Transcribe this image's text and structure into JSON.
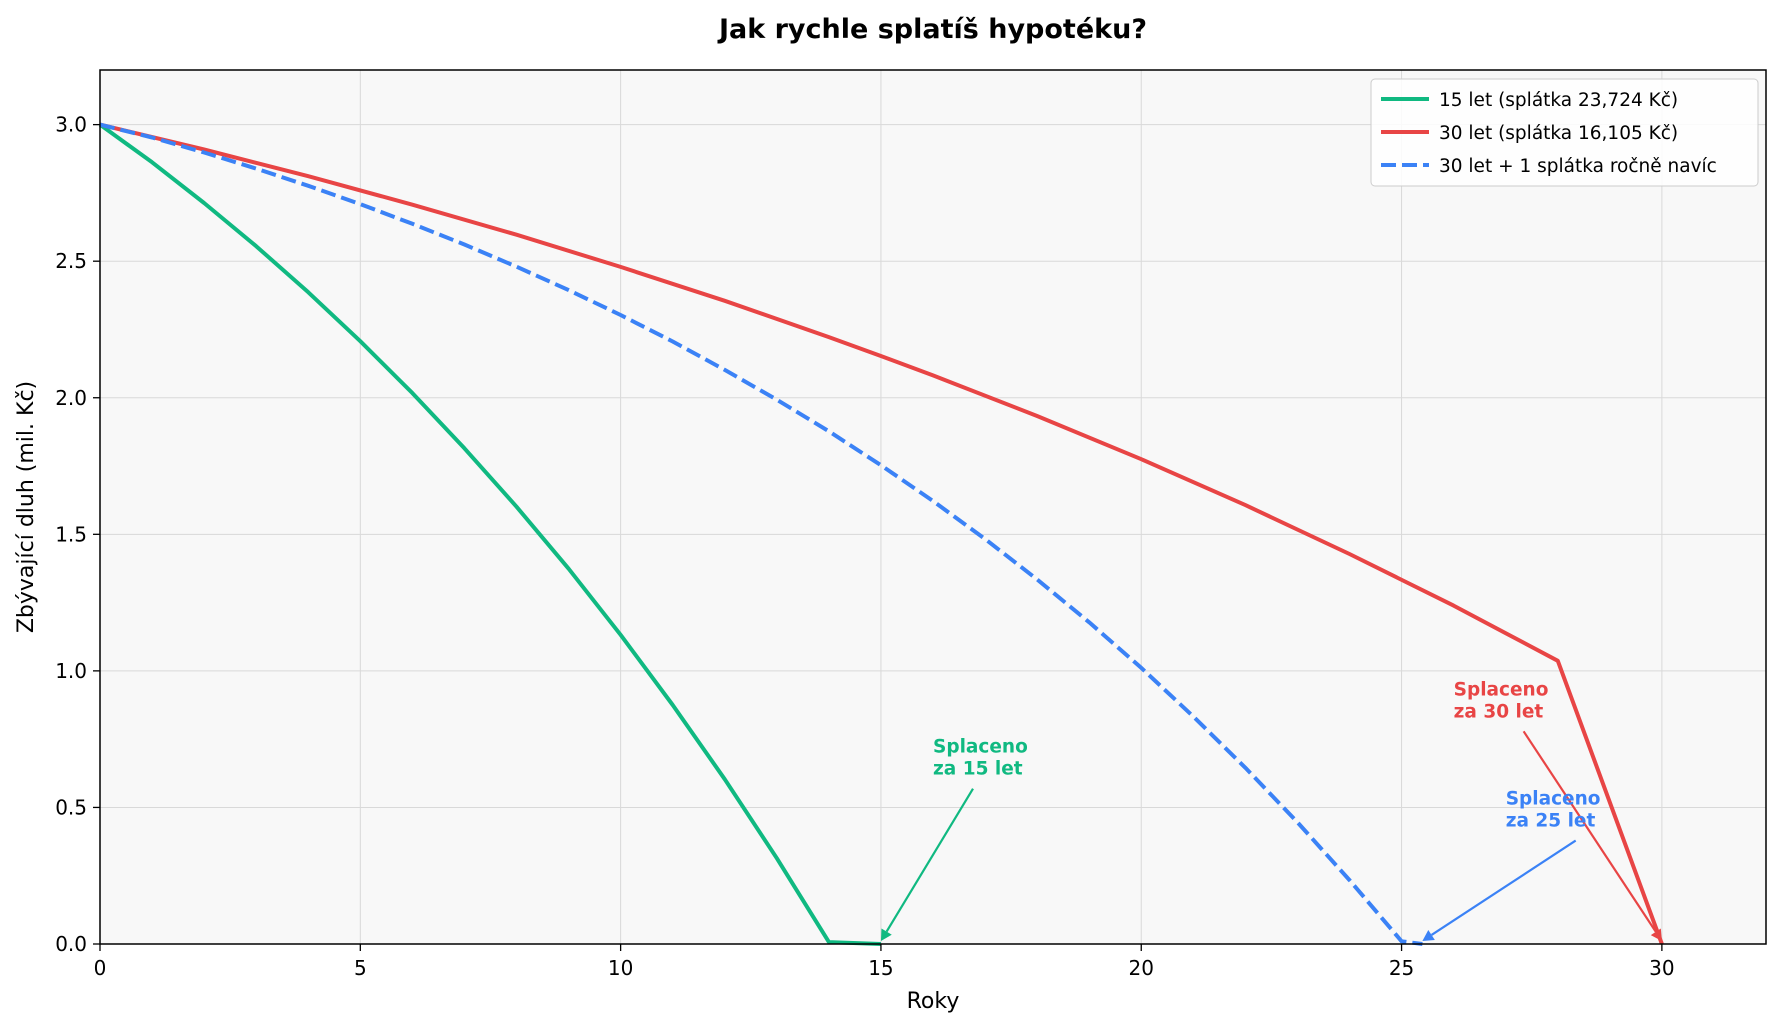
{
  "chart_data": {
    "type": "line",
    "title": "Jak rychle splatíš hypotéku?",
    "xlabel": "Roky",
    "ylabel": "Zbývající dluh (mil. Kč)",
    "xlim": [
      0,
      32
    ],
    "ylim": [
      0,
      3.2
    ],
    "xticks": [
      0,
      5,
      10,
      15,
      20,
      25,
      30
    ],
    "yticks": [
      0.0,
      0.5,
      1.0,
      1.5,
      2.0,
      2.5,
      3.0
    ],
    "xtick_labels": [
      "0",
      "5",
      "10",
      "15",
      "20",
      "25",
      "30"
    ],
    "ytick_labels": [
      "0.0",
      "0.5",
      "1.0",
      "1.5",
      "2.0",
      "2.5",
      "3.0"
    ],
    "grid": true,
    "legend_position": "top-right",
    "series": [
      {
        "name": "15 let (splátka 23,724 Kč)",
        "color": "#10b981",
        "style": "solid",
        "x": [
          0,
          1,
          2,
          3,
          4,
          5,
          6,
          7,
          8,
          9,
          10,
          11,
          12,
          13,
          14,
          15
        ],
        "y": [
          3.0,
          2.862,
          2.713,
          2.555,
          2.386,
          2.207,
          2.017,
          1.815,
          1.601,
          1.374,
          1.132,
          0.875,
          0.603,
          0.314,
          0.007,
          0.0
        ]
      },
      {
        "name": "30 let (splátka 16,105 Kč)",
        "color": "#e84545",
        "style": "solid",
        "x": [
          0,
          2,
          4,
          6,
          8,
          10,
          12,
          14,
          15,
          16,
          18,
          20,
          22,
          24,
          26,
          28,
          30
        ],
        "y": [
          3.0,
          2.909,
          2.811,
          2.707,
          2.597,
          2.479,
          2.355,
          2.222,
          2.153,
          2.082,
          1.933,
          1.775,
          1.607,
          1.428,
          1.239,
          1.037,
          0.0
        ]
      },
      {
        "name": "30 let + 1 splátka ročně navíc",
        "color": "#3b82f6",
        "style": "dashed",
        "x": [
          0,
          1,
          2,
          3,
          4,
          5,
          6,
          7,
          8,
          9,
          10,
          11,
          12,
          13,
          14,
          15,
          16,
          17,
          18,
          19,
          20,
          21,
          22,
          23,
          24,
          25,
          25.4
        ],
        "y": [
          3.0,
          2.953,
          2.898,
          2.839,
          2.776,
          2.709,
          2.637,
          2.561,
          2.48,
          2.394,
          2.303,
          2.206,
          2.102,
          1.993,
          1.877,
          1.753,
          1.622,
          1.483,
          1.335,
          1.178,
          1.011,
          0.833,
          0.645,
          0.446,
          0.234,
          0.01,
          0.0
        ]
      }
    ],
    "annotations": [
      {
        "text_line1": "Splaceno",
        "text_line2": "za 15 let",
        "color": "#10b981",
        "point": [
          15,
          0
        ],
        "text_at": [
          16,
          0.62
        ]
      },
      {
        "text_line1": "Splaceno",
        "text_line2": "za 30 let",
        "color": "#e84545",
        "point": [
          30,
          0
        ],
        "text_at": [
          26,
          0.83
        ]
      },
      {
        "text_line1": "Splaceno",
        "text_line2": "za 25 let",
        "color": "#3b82f6",
        "point": [
          25.4,
          0
        ],
        "text_at": [
          27,
          0.43
        ]
      }
    ]
  }
}
